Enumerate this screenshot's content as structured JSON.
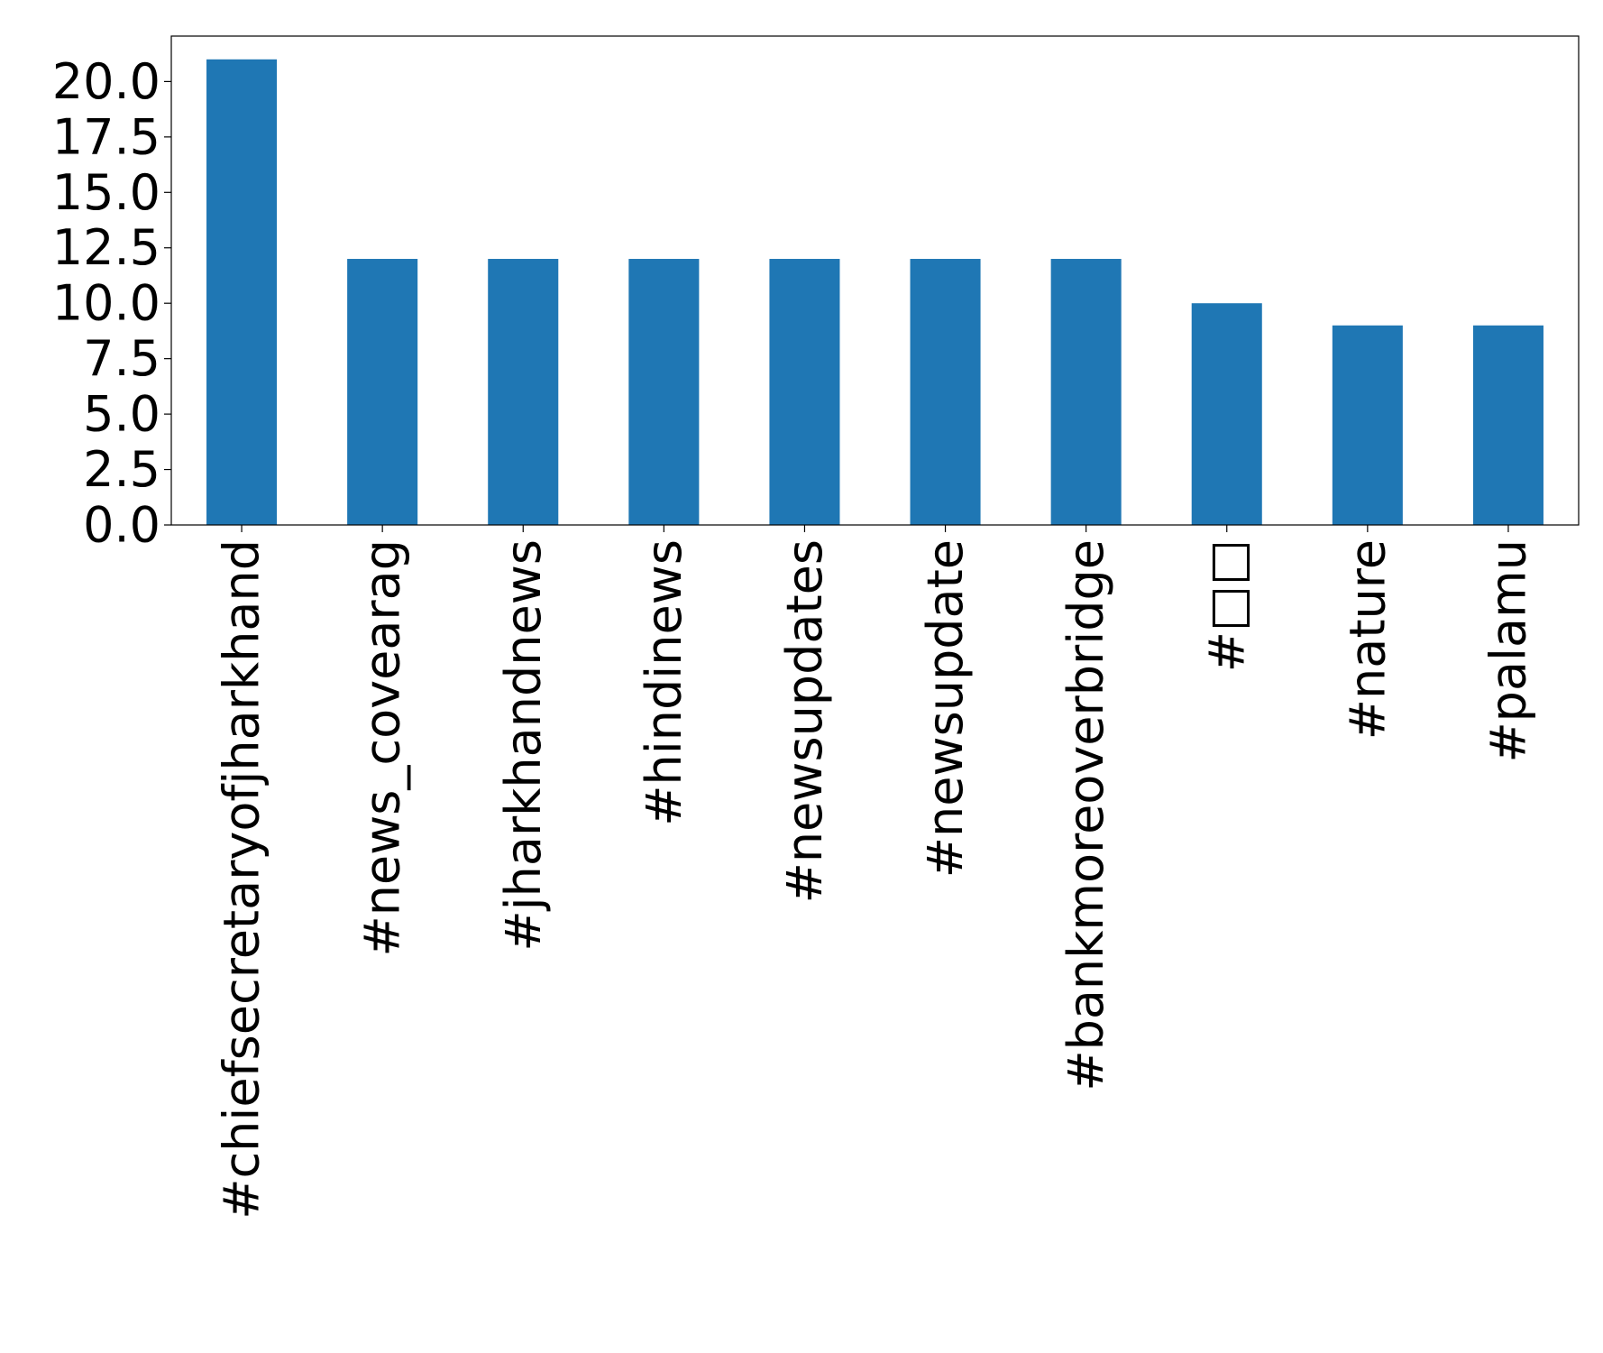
{
  "chart_data": {
    "type": "bar",
    "title": "",
    "xlabel": "",
    "ylabel": "",
    "categories": [
      "#chiefsecretaryofjharkhand",
      "#news_covearag",
      "#jharkhandnews",
      "#hindinews",
      "#newsupdates",
      "#newsupdate",
      "#bankmoreoverbridge",
      "#□□",
      "#nature",
      "#palamu"
    ],
    "values": [
      21,
      12,
      12,
      12,
      12,
      12,
      12,
      10,
      9,
      9
    ],
    "ylim": [
      0,
      22.05
    ],
    "yticks": [
      "0.0",
      "2.5",
      "5.0",
      "7.5",
      "10.0",
      "12.5",
      "15.0",
      "17.5",
      "20.0"
    ],
    "bar_color": "#1f77b4",
    "grid": false,
    "legend": "none"
  }
}
